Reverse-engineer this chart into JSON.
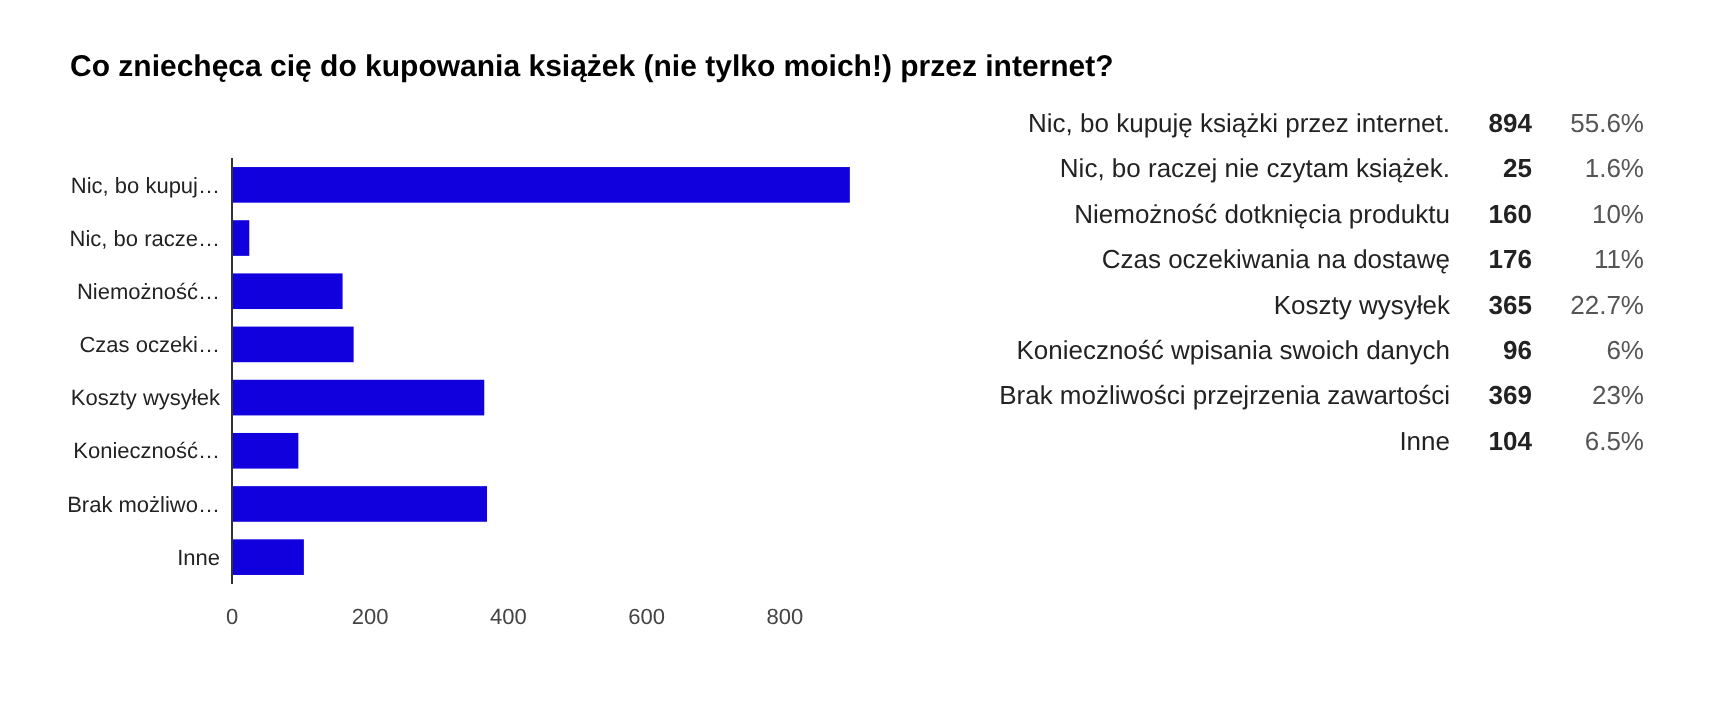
{
  "chart_data": [
    {
      "type": "bar",
      "orientation": "horizontal",
      "title": "Co zniechęca cię do kupowania książek (nie tylko moich!) przez internet?",
      "categories": [
        "Nic, bo kupuj…",
        "Nic, bo racze…",
        "Niemożność…",
        "Czas oczeki…",
        "Koszty wysyłek",
        "Konieczność…",
        "Brak możliwo…",
        "Inne"
      ],
      "values": [
        894,
        25,
        160,
        176,
        365,
        96,
        369,
        104
      ],
      "color": "#1100dd",
      "xlim": [
        0,
        900
      ],
      "xticks": [
        0,
        200,
        400,
        600,
        800
      ],
      "grid": false
    },
    {
      "type": "other",
      "annotations": [
        "Nic, bo kupuję książki przez internet.",
        "894",
        "55.6%",
        "Nic, bo raczej nie czytam książek.",
        "25",
        "1.6%",
        "Niemożność dotknięcia produktu",
        "160",
        "10%",
        "Czas oczekiwania na dostawę",
        "176",
        "11%",
        "Koszty wysyłek",
        "365",
        "22.7%",
        "Konieczność wpisania swoich danych",
        "96",
        "6%",
        "Brak możliwości przejrzenia zawartości",
        "369",
        "23%",
        "Inne",
        "104",
        "6.5%"
      ]
    }
  ]
}
